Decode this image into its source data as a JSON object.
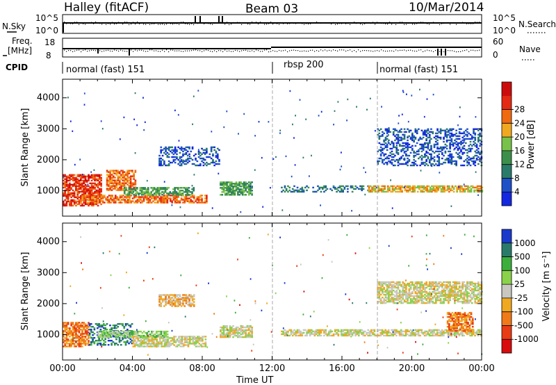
{
  "header": {
    "station": "Halley (fitACF)",
    "beam": "Beam 03",
    "date": "10/Mar/2014"
  },
  "top_panels": {
    "nsky_label": "N.Sky",
    "nsky_ticks": [
      "10^5",
      "10^0"
    ],
    "nsearch_label": "N.Search",
    "nsearch_ticks": [
      "10^5",
      "10^0"
    ],
    "freq_label_line1": "Freq.",
    "freq_label_line2": "[MHz]",
    "freq_ticks": [
      "18",
      "8"
    ],
    "nave_label": "Nave",
    "nave_ticks": [
      "60",
      "0"
    ],
    "cpid_label": "CPID",
    "cpid_segments": [
      {
        "label": "normal (fast) 151",
        "start": 0.0
      },
      {
        "label": "rbsp 200",
        "start": 12.0
      },
      {
        "label": "normal (fast) 151",
        "start": 18.0
      }
    ]
  },
  "chart_data": [
    {
      "type": "heatmap",
      "name": "power",
      "xlabel": "",
      "ylabel": "Slant Range [km]",
      "xlim": [
        0,
        24
      ],
      "ylim": [
        180,
        4600
      ],
      "yticks": [
        "1000",
        "2000",
        "3000",
        "4000"
      ],
      "dashed_lines_hours": [
        12,
        18
      ],
      "colorbar": {
        "label": "Power [dB]",
        "ticks": [
          "4",
          "8",
          "12",
          "16",
          "20",
          "24",
          "28"
        ],
        "colors": [
          "#1428e0",
          "#1e50c8",
          "#2a7a6a",
          "#3c8f4a",
          "#78c24a",
          "#f0a820",
          "#f06a10",
          "#e42a14",
          "#cc0c0c"
        ]
      },
      "regions": [
        {
          "t0": 0.0,
          "t1": 2.2,
          "r0": 500,
          "r1": 1500,
          "level": 7
        },
        {
          "t0": 2.5,
          "t1": 4.2,
          "r0": 1000,
          "r1": 1650,
          "level": 6
        },
        {
          "t0": 1.0,
          "t1": 8.2,
          "r0": 600,
          "r1": 850,
          "level": 6
        },
        {
          "t0": 3.5,
          "t1": 7.5,
          "r0": 850,
          "r1": 1100,
          "level": 3
        },
        {
          "t0": 9.0,
          "t1": 10.8,
          "r0": 850,
          "r1": 1300,
          "level": 3
        },
        {
          "t0": 12.5,
          "t1": 17.5,
          "r0": 950,
          "r1": 1150,
          "level": 2
        },
        {
          "t0": 17.5,
          "t1": 24.0,
          "r0": 950,
          "r1": 1150,
          "level": 5
        },
        {
          "t0": 5.5,
          "t1": 9.0,
          "r0": 1800,
          "r1": 2400,
          "level": 1
        },
        {
          "t0": 18.0,
          "t1": 24.0,
          "r0": 1800,
          "r1": 3000,
          "level": 1
        }
      ]
    },
    {
      "type": "heatmap",
      "name": "velocity",
      "xlabel": "Time UT",
      "ylabel": "Slant Range [km]",
      "xlim": [
        0,
        24
      ],
      "ylim": [
        180,
        4600
      ],
      "xticks": [
        "00:00",
        "04:00",
        "08:00",
        "12:00",
        "16:00",
        "20:00",
        "00:00"
      ],
      "yticks": [
        "1000",
        "2000",
        "3000",
        "4000"
      ],
      "dashed_lines_hours": [
        12,
        18
      ],
      "colorbar": {
        "label": "Velocity [m s⁻¹]",
        "ticks": [
          "1000",
          "500",
          "100",
          "25",
          "-25",
          "-100",
          "-500",
          "-1000"
        ],
        "colors": [
          "#1a3acc",
          "#2a7a6a",
          "#3cae3c",
          "#8ad24a",
          "#c8c8c0",
          "#f0a820",
          "#f07a18",
          "#e83c14",
          "#d80c0c"
        ]
      },
      "regions": [
        {
          "t0": 0.0,
          "t1": 1.5,
          "r0": 600,
          "r1": 1400,
          "level": 6
        },
        {
          "t0": 1.5,
          "t1": 4.0,
          "r0": 650,
          "r1": 1350,
          "level": 1
        },
        {
          "t0": 4.0,
          "t1": 8.2,
          "r0": 600,
          "r1": 950,
          "level": 4
        },
        {
          "t0": 2.0,
          "t1": 6.0,
          "r0": 900,
          "r1": 1100,
          "level": 3
        },
        {
          "t0": 9.0,
          "t1": 10.8,
          "r0": 900,
          "r1": 1300,
          "level": 4
        },
        {
          "t0": 12.5,
          "t1": 24.0,
          "r0": 950,
          "r1": 1150,
          "level": 4
        },
        {
          "t0": 5.5,
          "t1": 7.5,
          "r0": 1900,
          "r1": 2300,
          "level": 5
        },
        {
          "t0": 18.0,
          "t1": 24.0,
          "r0": 2000,
          "r1": 2700,
          "level": 4
        },
        {
          "t0": 22.0,
          "t1": 23.5,
          "r0": 1100,
          "r1": 1700,
          "level": 6
        }
      ]
    }
  ]
}
